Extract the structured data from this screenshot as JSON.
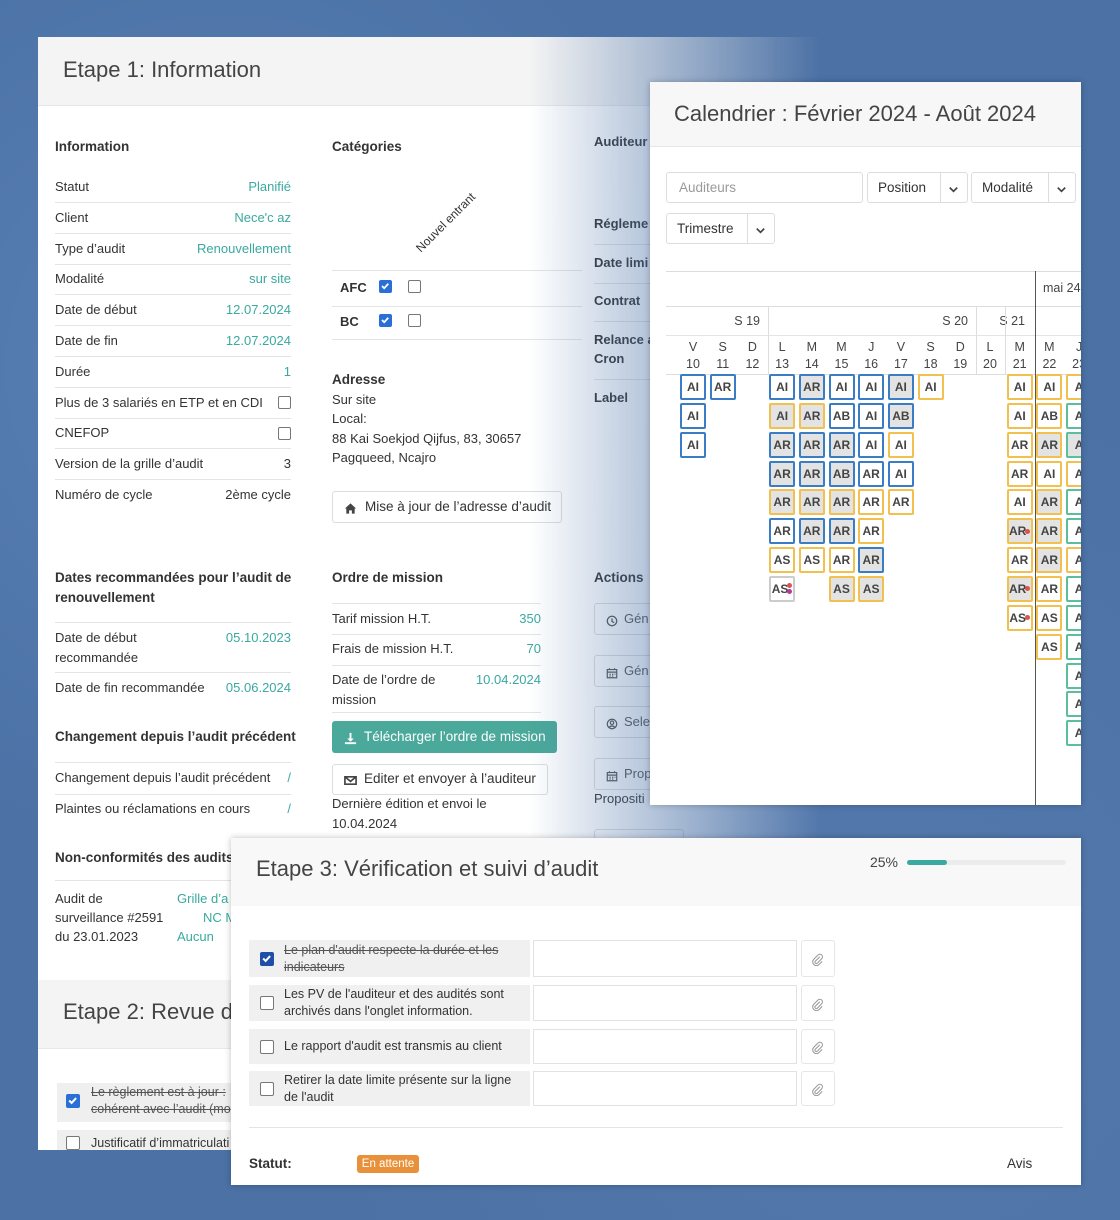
{
  "etape1": {
    "title": "Etape 1: Information",
    "information": {
      "heading": "Information",
      "rows": [
        {
          "label": "Statut",
          "value": "Planifié"
        },
        {
          "label": "Client",
          "value": "Nece'c az"
        },
        {
          "label": "Type d’audit",
          "value": "Renouvellement"
        },
        {
          "label": "Modalité",
          "value": "sur site"
        },
        {
          "label": "Date de début",
          "value": "12.07.2024"
        },
        {
          "label": "Date de fin",
          "value": "12.07.2024"
        },
        {
          "label": "Durée",
          "value": "1"
        },
        {
          "label": "Plus de 3 salariés en ETP et en CDI",
          "checked": false
        },
        {
          "label": "CNEFOP",
          "checked": false
        },
        {
          "label": "Version de la grille d’audit",
          "value": "3",
          "color": "#333333"
        },
        {
          "label": "Numéro de cycle",
          "value": "2ème cycle",
          "color": "#333333"
        }
      ]
    },
    "categories": {
      "heading": "Catégories",
      "column": "Nouvel entrant",
      "rows": [
        {
          "label": "AFC",
          "checked": [
            true,
            false
          ]
        },
        {
          "label": "BC",
          "checked": [
            true,
            false
          ]
        }
      ]
    },
    "address": {
      "heading": "Adresse",
      "lines": [
        "Sur site",
        "Local:",
        "88 Kai Soekjod Qijfus, 83, 30657",
        "Pagqueed, Ncajro"
      ],
      "button": "Mise à jour de l’adresse d’audit"
    },
    "side_labels": [
      "Auditeur",
      "Régleme",
      "Date limi",
      "Contrat",
      "Relance a",
      "Cron",
      "Label"
    ],
    "recommended": {
      "heading": "Dates recommandées pour l’audit de renouvellement",
      "rows": [
        {
          "label": "Date de début recommandée",
          "value": "05.10.2023"
        },
        {
          "label": "Date de fin recommandée",
          "value": "05.06.2024"
        }
      ]
    },
    "changes": {
      "heading": "Changement depuis l’audit précédent",
      "rows": [
        {
          "label": "Changement depuis l’audit précédent",
          "value": "/"
        },
        {
          "label": "Plaintes ou réclamations en cours",
          "value": "/"
        }
      ]
    },
    "nonconformities": {
      "heading": "Non-conformités des audits",
      "label": "Audit de surveillance #2591 du 23.01.2023",
      "values": [
        "Grille d’a",
        "NC M",
        "Aucun"
      ]
    },
    "mission": {
      "heading": "Ordre de mission",
      "rows": [
        {
          "label": "Tarif mission H.T.",
          "value": "350"
        },
        {
          "label": "Frais de mission H.T.",
          "value": "70"
        },
        {
          "label": "Date de l’ordre de mission",
          "value": "10.04.2024"
        }
      ],
      "download": "Télécharger l’ordre de mission",
      "send": "Editer et envoyer à l’auditeur",
      "note": "Dernière édition et envoi le 10.04.2024"
    },
    "actions": {
      "heading": "Actions",
      "buttons": [
        "Gén",
        "Gén",
        "Sele",
        "Prop"
      ],
      "note": "Propositi"
    }
  },
  "etape2": {
    "title": "Etape 2: Revue d",
    "items": [
      {
        "lines": [
          "Le règlement est à jour :",
          "cohérent avec l’audit (mo"
        ],
        "checked": true
      },
      {
        "lines": [
          "Justificatif d’immatriculati"
        ],
        "checked": false
      }
    ]
  },
  "calendar": {
    "title": "Calendrier : Février 2024 - Août 2024",
    "search": "Auditeurs",
    "selects": [
      "Position",
      "Modalité",
      "Trimestre"
    ],
    "month": "mai 24",
    "weeks": [
      "S 19",
      "S 20",
      "S 21"
    ],
    "days": [
      {
        "letter": "V",
        "day": 10,
        "cells": [
          {
            "code": "AI",
            "border": "#3b7dc4"
          },
          {
            "code": "AI",
            "border": "#3b7dc4"
          },
          {
            "code": "AI",
            "border": "#3b7dc4"
          }
        ]
      },
      {
        "letter": "S",
        "day": 11,
        "cells": [
          {
            "code": "AR",
            "border": "#3b7dc4"
          }
        ]
      },
      {
        "letter": "D",
        "day": 12,
        "cells": []
      },
      {
        "letter": "L",
        "day": 13,
        "cells": [
          {
            "code": "AI",
            "border": "#3b7dc4"
          },
          {
            "code": "AI",
            "border": "#f1c04f",
            "shade": true
          },
          {
            "code": "AR",
            "border": "#3b7dc4",
            "shade": true
          },
          {
            "code": "AR",
            "border": "#3b7dc4",
            "shade": true
          },
          {
            "code": "AR",
            "border": "#f1c04f",
            "shade": true
          },
          {
            "code": "AR",
            "border": "#3b7dc4"
          },
          {
            "code": "AS",
            "border": "#f1c04f"
          },
          {
            "code": "AS",
            "border": "#cccccc",
            "dots": [
              "#d9534f",
              "#b8379a"
            ]
          }
        ]
      },
      {
        "letter": "M",
        "day": 14,
        "cells": [
          {
            "code": "AR",
            "border": "#3b7dc4",
            "shade": true
          },
          {
            "code": "AR",
            "border": "#f1c04f",
            "shade": true
          },
          {
            "code": "AR",
            "border": "#3b7dc4",
            "shade": true
          },
          {
            "code": "AR",
            "border": "#3b7dc4",
            "shade": true
          },
          {
            "code": "AR",
            "border": "#f1c04f",
            "shade": true
          },
          {
            "code": "AR",
            "border": "#3b7dc4",
            "shade": true
          },
          {
            "code": "AS",
            "border": "#f1c04f"
          }
        ]
      },
      {
        "letter": "M",
        "day": 15,
        "cells": [
          {
            "code": "AI",
            "border": "#3b7dc4"
          },
          {
            "code": "AB",
            "border": "#3b7dc4"
          },
          {
            "code": "AR",
            "border": "#3b7dc4",
            "shade": true
          },
          {
            "code": "AB",
            "border": "#3b7dc4",
            "shade": true
          },
          {
            "code": "AR",
            "border": "#f1c04f",
            "shade": true
          },
          {
            "code": "AR",
            "border": "#3b7dc4",
            "shade": true
          },
          {
            "code": "AR",
            "border": "#f1c04f"
          },
          {
            "code": "AS",
            "border": "#f1c04f",
            "shade": true
          }
        ]
      },
      {
        "letter": "J",
        "day": 16,
        "cells": [
          {
            "code": "AI",
            "border": "#3b7dc4"
          },
          {
            "code": "AI",
            "border": "#3b7dc4"
          },
          {
            "code": "AI",
            "border": "#3b7dc4"
          },
          {
            "code": "AR",
            "border": "#3b7dc4"
          },
          {
            "code": "AR",
            "border": "#f1c04f"
          },
          {
            "code": "AR",
            "border": "#f1c04f"
          },
          {
            "code": "AR",
            "border": "#3b7dc4",
            "shade": true
          },
          {
            "code": "AS",
            "border": "#f1c04f",
            "shade": true
          }
        ]
      },
      {
        "letter": "V",
        "day": 17,
        "cells": [
          {
            "code": "AI",
            "border": "#3b7dc4",
            "shade": true
          },
          {
            "code": "AB",
            "border": "#3b7dc4",
            "shade": true
          },
          {
            "code": "AI",
            "border": "#f1c04f"
          },
          {
            "code": "AI",
            "border": "#3b7dc4"
          },
          {
            "code": "AR",
            "border": "#f1c04f"
          }
        ]
      },
      {
        "letter": "S",
        "day": 18,
        "cells": [
          {
            "code": "AI",
            "border": "#f1c04f"
          }
        ]
      },
      {
        "letter": "D",
        "day": 19,
        "cells": []
      },
      {
        "letter": "L",
        "day": 20,
        "cells": []
      },
      {
        "letter": "M",
        "day": 21,
        "cells": [
          {
            "code": "AI",
            "border": "#f1c04f"
          },
          {
            "code": "AI",
            "border": "#f1c04f"
          },
          {
            "code": "AR",
            "border": "#f1c04f"
          },
          {
            "code": "AR",
            "border": "#f1c04f"
          },
          {
            "code": "AI",
            "border": "#f1c04f"
          },
          {
            "code": "AR",
            "border": "#f1c04f",
            "shade": true,
            "dots": [
              "#d9534f"
            ]
          },
          {
            "code": "AR",
            "border": "#f1c04f"
          },
          {
            "code": "AR",
            "border": "#f1c04f",
            "shade": true,
            "dots": [
              "#d9534f"
            ]
          },
          {
            "code": "AS",
            "border": "#f1c04f",
            "dots": [
              "#d9534f"
            ]
          }
        ]
      },
      {
        "letter": "M",
        "day": 22,
        "cells": [
          {
            "code": "AI",
            "border": "#f1c04f"
          },
          {
            "code": "AB",
            "border": "#f1c04f"
          },
          {
            "code": "AR",
            "border": "#f1c04f",
            "shade": true
          },
          {
            "code": "AI",
            "border": "#f1c04f"
          },
          {
            "code": "AR",
            "border": "#f1c04f",
            "shade": true
          },
          {
            "code": "AR",
            "border": "#f1c04f",
            "shade": true
          },
          {
            "code": "AR",
            "border": "#f1c04f",
            "shade": true
          },
          {
            "code": "AR",
            "border": "#f1c04f"
          },
          {
            "code": "AS",
            "border": "#f1c04f"
          },
          {
            "code": "AS",
            "border": "#f1c04f"
          }
        ]
      },
      {
        "letter": "J",
        "day": 23,
        "cells": [
          {
            "code": "A",
            "border": "#f1c04f"
          },
          {
            "code": "A",
            "border": "#5bbf9c"
          },
          {
            "code": "A",
            "border": "#5bbf9c",
            "shade": true
          },
          {
            "code": "A",
            "border": "#f1c04f"
          },
          {
            "code": "A",
            "border": "#5bbf9c"
          },
          {
            "code": "A",
            "border": "#5bbf9c"
          },
          {
            "code": "A",
            "border": "#f1c04f"
          },
          {
            "code": "A",
            "border": "#5bbf9c"
          },
          {
            "code": "A",
            "border": "#5bbf9c"
          },
          {
            "code": "A",
            "border": "#5bbf9c"
          },
          {
            "code": "A",
            "border": "#5bbf9c"
          },
          {
            "code": "A",
            "border": "#5bbf9c"
          },
          {
            "code": "A",
            "border": "#5bbf9c"
          }
        ]
      }
    ]
  },
  "etape3": {
    "title": "Etape 3: Vérification et suivi d’audit",
    "progress": {
      "value": 25,
      "label": "25%"
    },
    "items": [
      {
        "text": "Le plan d'audit respecte la durée et les indicateurs",
        "checked": true
      },
      {
        "text": "Les PV de l'auditeur et des audités sont archivés dans l'onglet information.",
        "checked": false
      },
      {
        "text": "Le rapport d'audit est transmis au client",
        "checked": false
      },
      {
        "text": "Retirer la date limite présente sur la ligne de l'audit",
        "checked": false
      }
    ],
    "status_label": "Statut:",
    "status": "En attente",
    "avis": "Avis"
  }
}
